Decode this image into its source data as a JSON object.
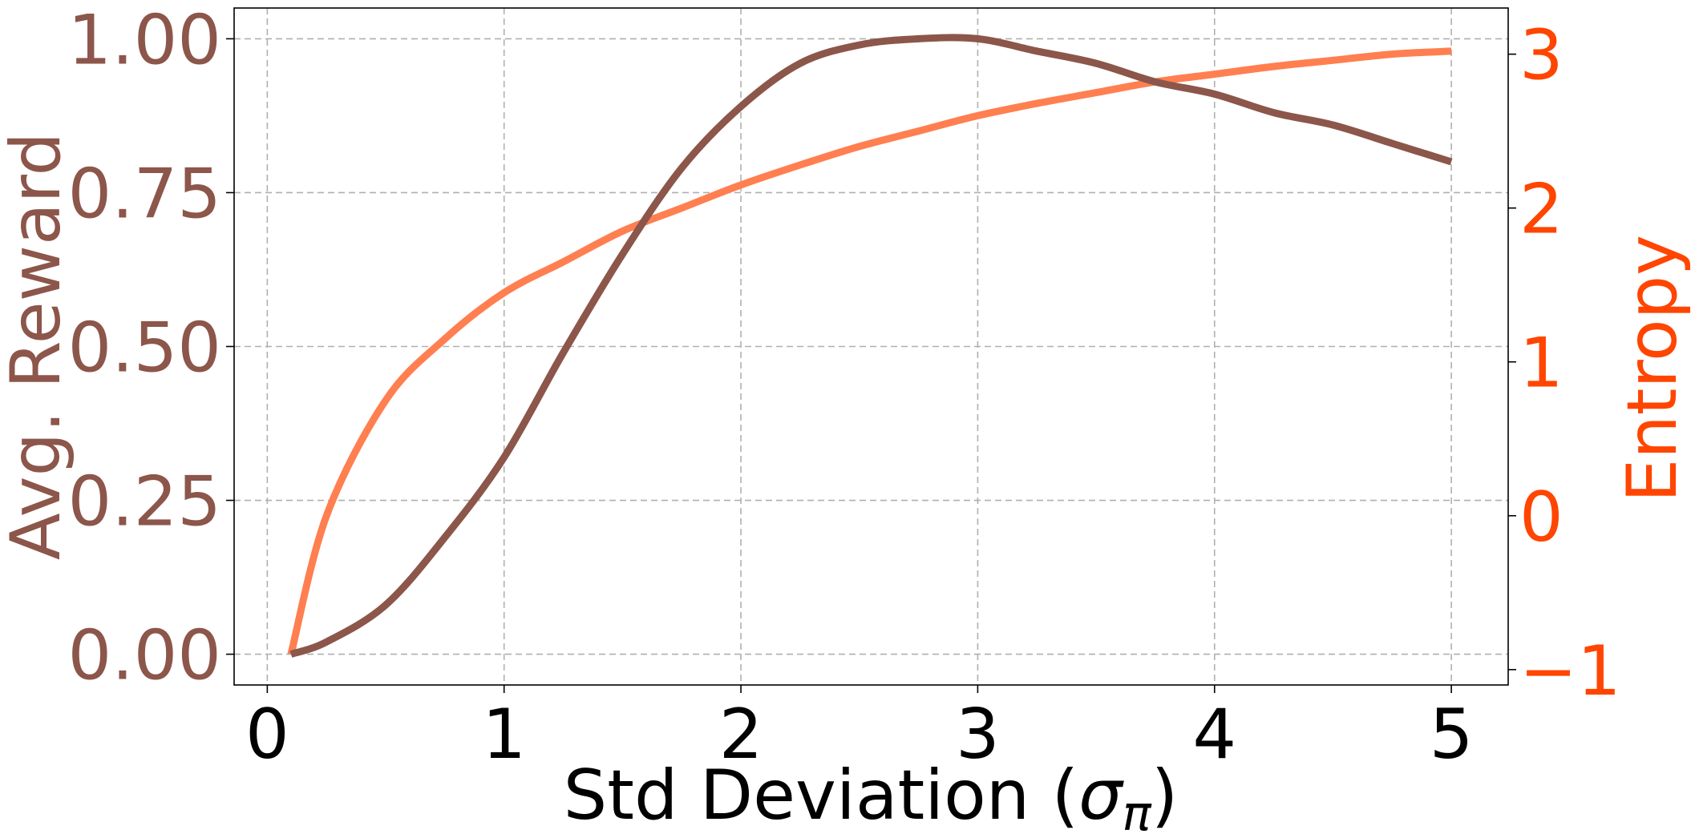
{
  "chart_data": {
    "type": "line",
    "xlabel": "Std Deviation (",
    "xlabel_symbol": "σ",
    "xlabel_subscript": "π",
    "xlabel_suffix": ")",
    "ylabel_left": "Avg. Reward",
    "ylabel_right": "Entropy",
    "xlim": [
      -0.14,
      5.24
    ],
    "ylim_left": [
      -0.05,
      1.05
    ],
    "ylim_right": [
      -1.1,
      3.3
    ],
    "x_ticks": [
      0,
      1,
      2,
      3,
      4,
      5
    ],
    "x_tick_labels": [
      "0",
      "1",
      "2",
      "3",
      "4",
      "5"
    ],
    "y_left_ticks": [
      0.0,
      0.25,
      0.5,
      0.75,
      1.0
    ],
    "y_left_tick_labels": [
      "0.00",
      "0.25",
      "0.50",
      "0.75",
      "1.00"
    ],
    "y_right_ticks": [
      -1,
      0,
      1,
      2,
      3
    ],
    "y_right_tick_labels": [
      "−1",
      "0",
      "1",
      "2",
      "3"
    ],
    "grid": true,
    "colors": {
      "reward": "#8c564b",
      "entropy": "#ff7f50",
      "right_axis": "#ff4500",
      "grid": "#b0b0b0",
      "frame": "#000000"
    },
    "series": [
      {
        "axis": "left",
        "x": [
          0.1,
          0.25,
          0.5,
          0.75,
          1.0,
          1.25,
          1.5,
          1.75,
          2.0,
          2.25,
          2.5,
          2.75,
          3.0,
          3.25,
          3.5,
          3.75,
          4.0,
          4.25,
          4.5,
          4.75,
          5.0
        ],
        "values": [
          0.0,
          0.02,
          0.08,
          0.19,
          0.32,
          0.49,
          0.65,
          0.79,
          0.89,
          0.96,
          0.99,
          1.0,
          1.0,
          0.98,
          0.96,
          0.93,
          0.91,
          0.88,
          0.86,
          0.83,
          0.8
        ]
      },
      {
        "axis": "right",
        "x": [
          0.1,
          0.25,
          0.5,
          0.75,
          1.0,
          1.25,
          1.5,
          1.75,
          2.0,
          2.25,
          2.5,
          2.75,
          3.0,
          3.25,
          3.5,
          3.75,
          4.0,
          4.25,
          4.5,
          4.75,
          5.0
        ],
        "values": [
          -0.9,
          0.0,
          0.75,
          1.15,
          1.45,
          1.65,
          1.85,
          2.0,
          2.15,
          2.28,
          2.4,
          2.5,
          2.6,
          2.68,
          2.75,
          2.82,
          2.87,
          2.92,
          2.96,
          3.0,
          3.02
        ]
      }
    ]
  }
}
